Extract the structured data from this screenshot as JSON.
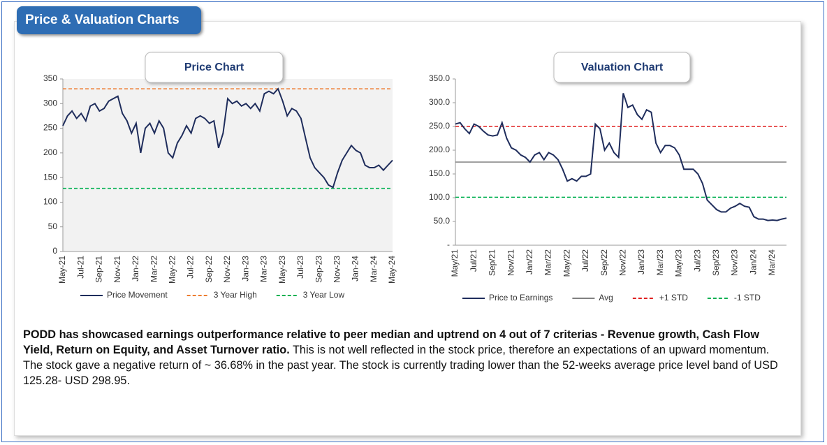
{
  "header": {
    "title": "Price & Valuation Charts"
  },
  "chart_data": [
    {
      "type": "line",
      "title": "Price Chart",
      "background": "#f2f2f2",
      "categories": [
        "May-21",
        null,
        null,
        null,
        "Jul-21",
        null,
        null,
        null,
        "Sep-21",
        null,
        null,
        null,
        "Nov-21",
        null,
        null,
        null,
        "Jan-22",
        null,
        null,
        null,
        "Mar-22",
        null,
        null,
        null,
        "May-22",
        null,
        null,
        null,
        "Jul-22",
        null,
        null,
        null,
        "Sep-22",
        null,
        null,
        null,
        "Nov-22",
        null,
        null,
        null,
        "Jan-23",
        null,
        null,
        null,
        "Mar-23",
        null,
        null,
        null,
        "May-23",
        null,
        null,
        null,
        "Jul-23",
        null,
        null,
        null,
        "Sep-23",
        null,
        null,
        null,
        "Nov-23",
        null,
        null,
        null,
        "Jan-24",
        null,
        null,
        null,
        "Mar-24",
        null,
        null,
        null,
        "May-24"
      ],
      "series": [
        {
          "name": "Price Movement",
          "color": "#1f2d5c",
          "values": [
            255,
            275,
            285,
            270,
            280,
            265,
            295,
            300,
            285,
            290,
            305,
            310,
            315,
            280,
            265,
            240,
            260,
            200,
            250,
            260,
            240,
            265,
            250,
            200,
            190,
            220,
            235,
            255,
            240,
            270,
            275,
            270,
            260,
            265,
            210,
            240,
            310,
            300,
            305,
            295,
            300,
            290,
            300,
            285,
            320,
            325,
            320,
            330,
            305,
            275,
            290,
            285,
            270,
            230,
            190,
            170,
            160,
            150,
            135,
            130,
            160,
            185,
            200,
            215,
            205,
            200,
            175,
            170,
            170,
            175,
            165,
            175,
            185
          ]
        }
      ],
      "reference_lines": [
        {
          "name": "3 Year High",
          "value": 330,
          "color": "#ed7d31"
        },
        {
          "name": "3 Year Low",
          "value": 128,
          "color": "#00b050"
        }
      ],
      "ylim": [
        0,
        350
      ],
      "yticks": [
        0,
        50,
        100,
        150,
        200,
        250,
        300,
        350
      ]
    },
    {
      "type": "line",
      "title": "Valuation Chart",
      "background": "#ffffff",
      "categories": [
        "May/21",
        null,
        null,
        null,
        "Jul/21",
        null,
        null,
        null,
        "Sep/21",
        null,
        null,
        null,
        "Nov/21",
        null,
        null,
        null,
        "Jan/22",
        null,
        null,
        null,
        "Mar/22",
        null,
        null,
        null,
        "May/22",
        null,
        null,
        null,
        "Jul/22",
        null,
        null,
        null,
        "Sep/22",
        null,
        null,
        null,
        "Nov/22",
        null,
        null,
        null,
        "Jan/23",
        null,
        null,
        null,
        "Mar/23",
        null,
        null,
        null,
        "May/23",
        null,
        null,
        null,
        "Jul/23",
        null,
        null,
        null,
        "Sep/23",
        null,
        null,
        null,
        "Nov/23",
        null,
        null,
        null,
        "Jan/24",
        null,
        null,
        null,
        "Mar/24",
        null,
        null,
        null
      ],
      "series": [
        {
          "name": "Price to Earnings",
          "color": "#1f2d5c",
          "values": [
            255,
            258,
            245,
            235,
            255,
            250,
            240,
            232,
            230,
            232,
            258,
            225,
            205,
            200,
            190,
            185,
            175,
            190,
            195,
            180,
            195,
            190,
            180,
            160,
            135,
            140,
            135,
            145,
            145,
            150,
            255,
            245,
            200,
            215,
            195,
            185,
            320,
            290,
            295,
            275,
            265,
            285,
            280,
            215,
            195,
            210,
            210,
            205,
            190,
            160,
            160,
            160,
            150,
            130,
            95,
            85,
            75,
            70,
            70,
            78,
            82,
            88,
            82,
            80,
            60,
            55,
            55,
            52,
            53,
            52,
            55,
            57
          ]
        }
      ],
      "reference_lines": [
        {
          "name": "Avg",
          "value": 175,
          "color": "#808080",
          "solid": true
        },
        {
          "name": "+1 STD",
          "value": 250,
          "color": "#e02020"
        },
        {
          "name": "-1 STD",
          "value": 101,
          "color": "#00b050"
        }
      ],
      "ylim": [
        0,
        350
      ],
      "yticks": [
        {
          "value": 0,
          "label": "-"
        },
        {
          "value": 50,
          "label": "50.0"
        },
        {
          "value": 100,
          "label": "100.0"
        },
        {
          "value": 150,
          "label": "150.0"
        },
        {
          "value": 200,
          "label": "200.0"
        },
        {
          "value": 250,
          "label": "250.0"
        },
        {
          "value": 300,
          "label": "300.0"
        },
        {
          "value": 350,
          "label": "350.0"
        }
      ]
    }
  ],
  "text": {
    "bold": "PODD has showcased earnings outperformance relative to peer median and uptrend on 4 out of 7 criterias - Revenue growth, Cash Flow Yield, Return on Equity, and Asset Turnover ratio.",
    "normal": " This is not well reflected in the stock price, therefore an expectations of an upward momentum. The stock gave a negative return of ~ 36.68% in the past year. The stock is currently trading lower than the 52-weeks average price level band of USD 125.28- USD 298.95."
  }
}
